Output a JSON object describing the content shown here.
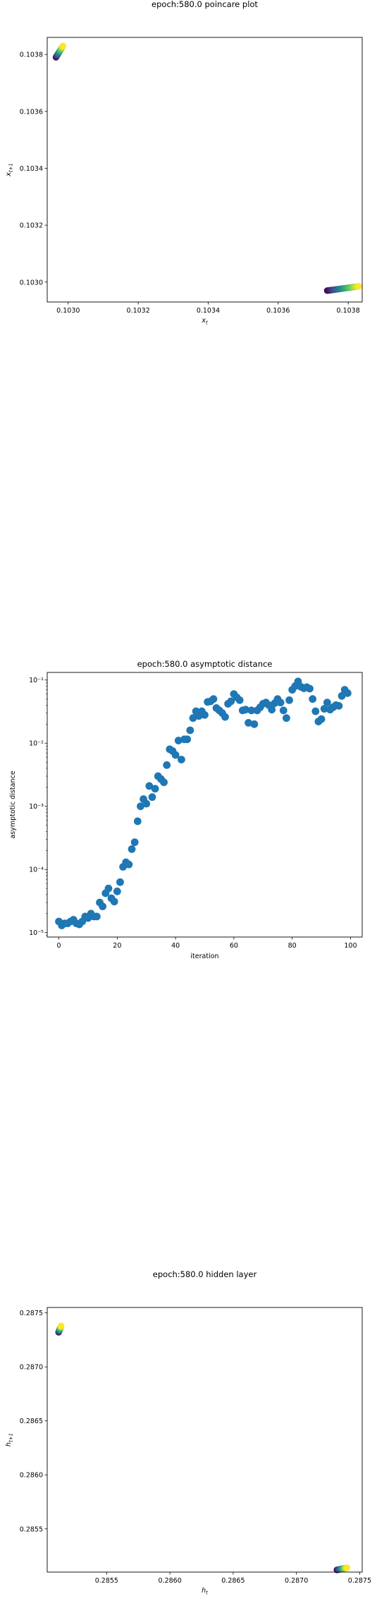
{
  "chart_data": [
    {
      "type": "scatter",
      "title": "epoch:580.0 poincare plot",
      "xlabel": "x_t",
      "ylabel": "x_{t+1}",
      "xlim": [
        0.10294,
        0.10384
      ],
      "ylim": [
        0.10293,
        0.10386
      ],
      "xticks": [
        "0.1030",
        "0.1032",
        "0.1034",
        "0.1036",
        "0.1038"
      ],
      "yticks": [
        "0.1030",
        "0.1032",
        "0.1034",
        "0.1036",
        "0.1038"
      ],
      "xtick_values": [
        0.103,
        0.1032,
        0.1034,
        0.1036,
        0.1038
      ],
      "ytick_values": [
        0.103,
        0.1032,
        0.1034,
        0.1036,
        0.1038
      ],
      "colormap": [
        "#440154",
        "#31688e",
        "#35b779",
        "#fde725"
      ],
      "clusters": [
        {
          "x": [
            0.102965,
            0.102985
          ],
          "y": [
            0.10379,
            0.10383
          ]
        },
        {
          "x": [
            0.10374,
            0.10383
          ],
          "y": [
            0.10297,
            0.102985
          ]
        }
      ]
    },
    {
      "type": "scatter",
      "title": "epoch:580.0 asymptotic distance",
      "xlabel": "iteration",
      "ylabel": "asymptotic distance",
      "yscale": "log",
      "xlim": [
        -4,
        104
      ],
      "ylim_log10": [
        -5.07,
        -0.88
      ],
      "xticks": [
        "0",
        "20",
        "40",
        "60",
        "80",
        "100"
      ],
      "xtick_values": [
        0,
        20,
        40,
        60,
        80,
        100
      ],
      "yticks": [
        "10⁻⁵",
        "10⁻⁴",
        "10⁻³",
        "10⁻²",
        "10⁻¹"
      ],
      "ytick_exponents": [
        -5,
        -4,
        -3,
        -2,
        -1
      ],
      "color": "#1f77b4",
      "x": [
        0,
        1,
        2,
        3,
        4,
        5,
        6,
        7,
        8,
        9,
        10,
        11,
        12,
        13,
        14,
        15,
        16,
        17,
        18,
        19,
        20,
        21,
        22,
        23,
        24,
        25,
        26,
        27,
        28,
        29,
        30,
        31,
        32,
        33,
        34,
        35,
        36,
        37,
        38,
        39,
        40,
        41,
        42,
        43,
        44,
        45,
        46,
        47,
        48,
        49,
        50,
        51,
        52,
        53,
        54,
        55,
        56,
        57,
        58,
        59,
        60,
        61,
        62,
        63,
        64,
        65,
        66,
        67,
        68,
        69,
        70,
        71,
        72,
        73,
        74,
        75,
        76,
        77,
        78,
        79,
        80,
        81,
        82,
        83,
        84,
        85,
        86,
        87,
        88,
        89,
        90,
        91,
        92,
        93,
        94,
        95,
        96,
        97,
        98,
        99
      ],
      "y": [
        1.5e-05,
        1.3e-05,
        1.4e-05,
        1.4e-05,
        1.5e-05,
        1.6e-05,
        1.4e-05,
        1.35e-05,
        1.5e-05,
        1.8e-05,
        1.7e-05,
        2e-05,
        1.8e-05,
        1.8e-05,
        3e-05,
        2.6e-05,
        4.2e-05,
        5e-05,
        3.5e-05,
        3.1e-05,
        4.5e-05,
        6.3e-05,
        0.00011,
        0.00013,
        0.00012,
        0.00021,
        0.00027,
        0.00058,
        0.001,
        0.0013,
        0.0011,
        0.0021,
        0.0014,
        0.0019,
        0.003,
        0.0027,
        0.0024,
        0.0045,
        0.008,
        0.0075,
        0.0065,
        0.011,
        0.0055,
        0.0115,
        0.0115,
        0.016,
        0.025,
        0.032,
        0.027,
        0.032,
        0.028,
        0.045,
        0.046,
        0.05,
        0.036,
        0.033,
        0.03,
        0.026,
        0.042,
        0.046,
        0.06,
        0.053,
        0.048,
        0.033,
        0.034,
        0.021,
        0.033,
        0.02,
        0.033,
        0.037,
        0.042,
        0.044,
        0.04,
        0.034,
        0.043,
        0.05,
        0.044,
        0.033,
        0.025,
        0.048,
        0.07,
        0.08,
        0.095,
        0.078,
        0.074,
        0.077,
        0.073,
        0.05,
        0.032,
        0.022,
        0.024,
        0.035,
        0.044,
        0.034,
        0.037,
        0.04,
        0.039,
        0.056,
        0.07,
        0.062
      ]
    },
    {
      "type": "scatter",
      "title": "epoch:580.0 hidden layer",
      "xlabel": "h_t",
      "ylabel": "h_{t+1}",
      "xlim": [
        0.28503,
        0.28752
      ],
      "ylim": [
        0.2851,
        0.28755
      ],
      "xticks": [
        "0.2855",
        "0.2860",
        "0.2865",
        "0.2870",
        "0.2875"
      ],
      "yticks": [
        "0.2855",
        "0.2860",
        "0.2865",
        "0.2870",
        "0.2875"
      ],
      "xtick_values": [
        0.2855,
        0.286,
        0.2865,
        0.287,
        0.2875
      ],
      "ytick_values": [
        0.2855,
        0.286,
        0.2865,
        0.287,
        0.2875
      ],
      "colormap": [
        "#440154",
        "#31688e",
        "#35b779",
        "#fde725"
      ],
      "clusters": [
        {
          "x": [
            0.28512,
            0.28514
          ],
          "y": [
            0.28732,
            0.28738
          ]
        },
        {
          "x": [
            0.28732,
            0.2874
          ],
          "y": [
            0.28512,
            0.28514
          ]
        }
      ]
    }
  ]
}
